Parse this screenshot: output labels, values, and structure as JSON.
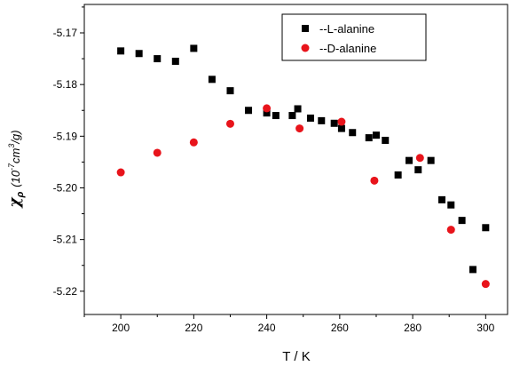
{
  "chart_data": {
    "type": "scatter",
    "xlabel": "T / K",
    "ylabel_symbol": "χ",
    "ylabel_subscript": "ρ",
    "ylabel_units_prefix": "(10",
    "ylabel_units_exp1": "-7",
    "ylabel_units_mid": "cm",
    "ylabel_units_exp2": "3",
    "ylabel_units_suffix": "/g)",
    "xlim": [
      190,
      306
    ],
    "ylim": [
      -5.2245,
      -5.1645
    ],
    "x_ticks": [
      200,
      220,
      240,
      260,
      280,
      300
    ],
    "x_minor_ticks": [
      190,
      210,
      230,
      250,
      270,
      290
    ],
    "y_ticks": [
      -5.17,
      -5.18,
      -5.19,
      -5.2,
      -5.21,
      -5.22
    ],
    "y_tick_labels": [
      "-5.17",
      "-5.18",
      "-5.19",
      "-5.20",
      "-5.21",
      "-5.22"
    ],
    "grid": false,
    "legend_position": "top-right",
    "series": [
      {
        "name": "--L-alanine",
        "marker": "square",
        "color": "#000000",
        "points": [
          [
            200,
            -5.1735
          ],
          [
            205,
            -5.174
          ],
          [
            210,
            -5.175
          ],
          [
            215,
            -5.1755
          ],
          [
            220,
            -5.173
          ],
          [
            225,
            -5.179
          ],
          [
            230,
            -5.1812
          ],
          [
            235,
            -5.185
          ],
          [
            240,
            -5.1855
          ],
          [
            242.5,
            -5.186
          ],
          [
            247,
            -5.186
          ],
          [
            248.5,
            -5.1847
          ],
          [
            252,
            -5.1865
          ],
          [
            255,
            -5.187
          ],
          [
            258.5,
            -5.1875
          ],
          [
            260.5,
            -5.1885
          ],
          [
            263.5,
            -5.1893
          ],
          [
            268,
            -5.1903
          ],
          [
            270,
            -5.1898
          ],
          [
            272.5,
            -5.1908
          ],
          [
            276,
            -5.1975
          ],
          [
            279,
            -5.1947
          ],
          [
            281.5,
            -5.1965
          ],
          [
            285,
            -5.1947
          ],
          [
            288,
            -5.2023
          ],
          [
            290.5,
            -5.2033
          ],
          [
            293.5,
            -5.2063
          ],
          [
            296.5,
            -5.2158
          ],
          [
            300,
            -5.2077
          ]
        ]
      },
      {
        "name": "--D-alanine",
        "marker": "circle",
        "color": "#e8141b",
        "points": [
          [
            200,
            -5.197
          ],
          [
            210,
            -5.1932
          ],
          [
            220,
            -5.1912
          ],
          [
            230,
            -5.1876
          ],
          [
            240,
            -5.1846
          ],
          [
            249,
            -5.1885
          ],
          [
            260.5,
            -5.1872
          ],
          [
            269.5,
            -5.1986
          ],
          [
            282,
            -5.1942
          ],
          [
            290.5,
            -5.2081
          ],
          [
            300,
            -5.2186
          ]
        ]
      }
    ]
  }
}
